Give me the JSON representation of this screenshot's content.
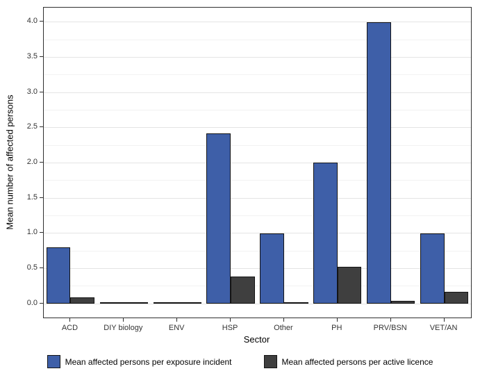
{
  "chart_data": {
    "type": "bar",
    "title": "",
    "xlabel": "Sector",
    "ylabel": "Mean number of affected persons",
    "categories": [
      "ACD",
      "DIY biology",
      "ENV",
      "HSP",
      "Other",
      "PH",
      "PRV/BSN",
      "VET/AN"
    ],
    "series": [
      {
        "name": "Mean affected persons per exposure incident",
        "color": "#3e5fa8",
        "values": [
          0.8,
          0.0,
          0.0,
          2.42,
          1.0,
          2.0,
          4.0,
          1.0
        ]
      },
      {
        "name": "Mean affected persons per active licence",
        "color": "#3f3f3f",
        "values": [
          0.09,
          0.0,
          0.0,
          0.38,
          0.02,
          0.52,
          0.04,
          0.17
        ]
      }
    ],
    "ylim": [
      0,
      4.2
    ],
    "yticks": [
      "0.0",
      "0.5",
      "1.0",
      "1.5",
      "2.0",
      "2.5",
      "3.0",
      "3.5",
      "4.0"
    ],
    "grid": true,
    "legend_position": "bottom"
  }
}
